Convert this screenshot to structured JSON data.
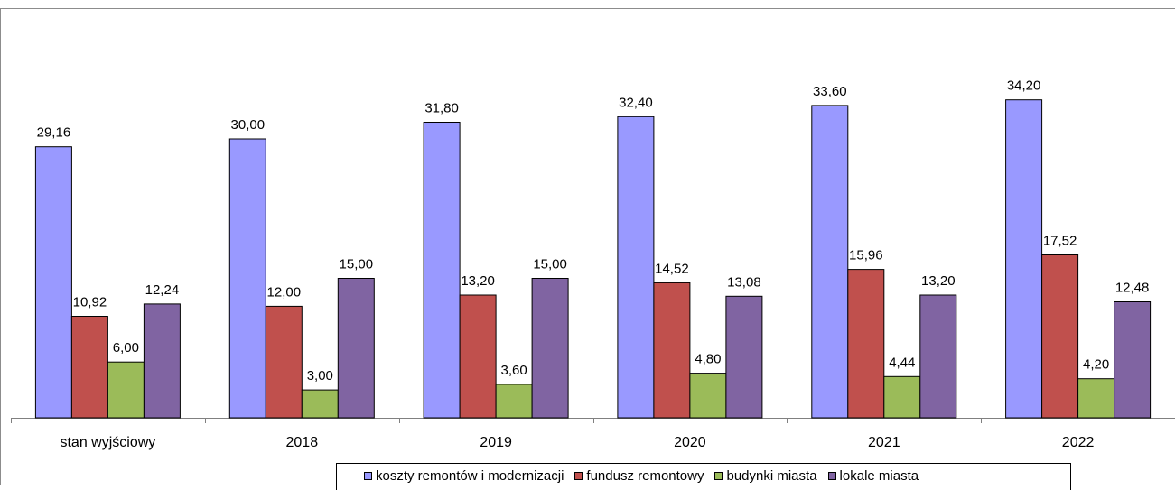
{
  "chart_data": {
    "type": "bar",
    "categories": [
      "stan wyjściowy",
      "2018",
      "2019",
      "2020",
      "2021",
      "2022"
    ],
    "series": [
      {
        "name": "koszty remontów i modernizacji",
        "color": "#9999ff",
        "values": [
          29.16,
          30.0,
          31.8,
          32.4,
          33.6,
          34.2
        ],
        "labels": [
          "29,16",
          "30,00",
          "31,80",
          "32,40",
          "33,60",
          "34,20"
        ]
      },
      {
        "name": "fundusz remontowy",
        "color": "#c0504d",
        "values": [
          10.92,
          12.0,
          13.2,
          14.52,
          15.96,
          17.52
        ],
        "labels": [
          "10,92",
          "12,00",
          "13,20",
          "14,52",
          "15,96",
          "17,52"
        ]
      },
      {
        "name": "budynki miasta",
        "color": "#9bbb59",
        "values": [
          6.0,
          3.0,
          3.6,
          4.8,
          4.44,
          4.2
        ],
        "labels": [
          "6,00",
          "3,00",
          "3,60",
          "4,80",
          "4,44",
          "4,20"
        ]
      },
      {
        "name": "lokale miasta",
        "color": "#8064a2",
        "values": [
          12.24,
          15.0,
          15.0,
          13.08,
          13.2,
          12.48
        ],
        "labels": [
          "12,24",
          "15,00",
          "15,00",
          "13,08",
          "13,20",
          "12,48"
        ]
      }
    ],
    "ylim": [
      0,
      36
    ],
    "grid": false,
    "legend_position": "bottom"
  }
}
